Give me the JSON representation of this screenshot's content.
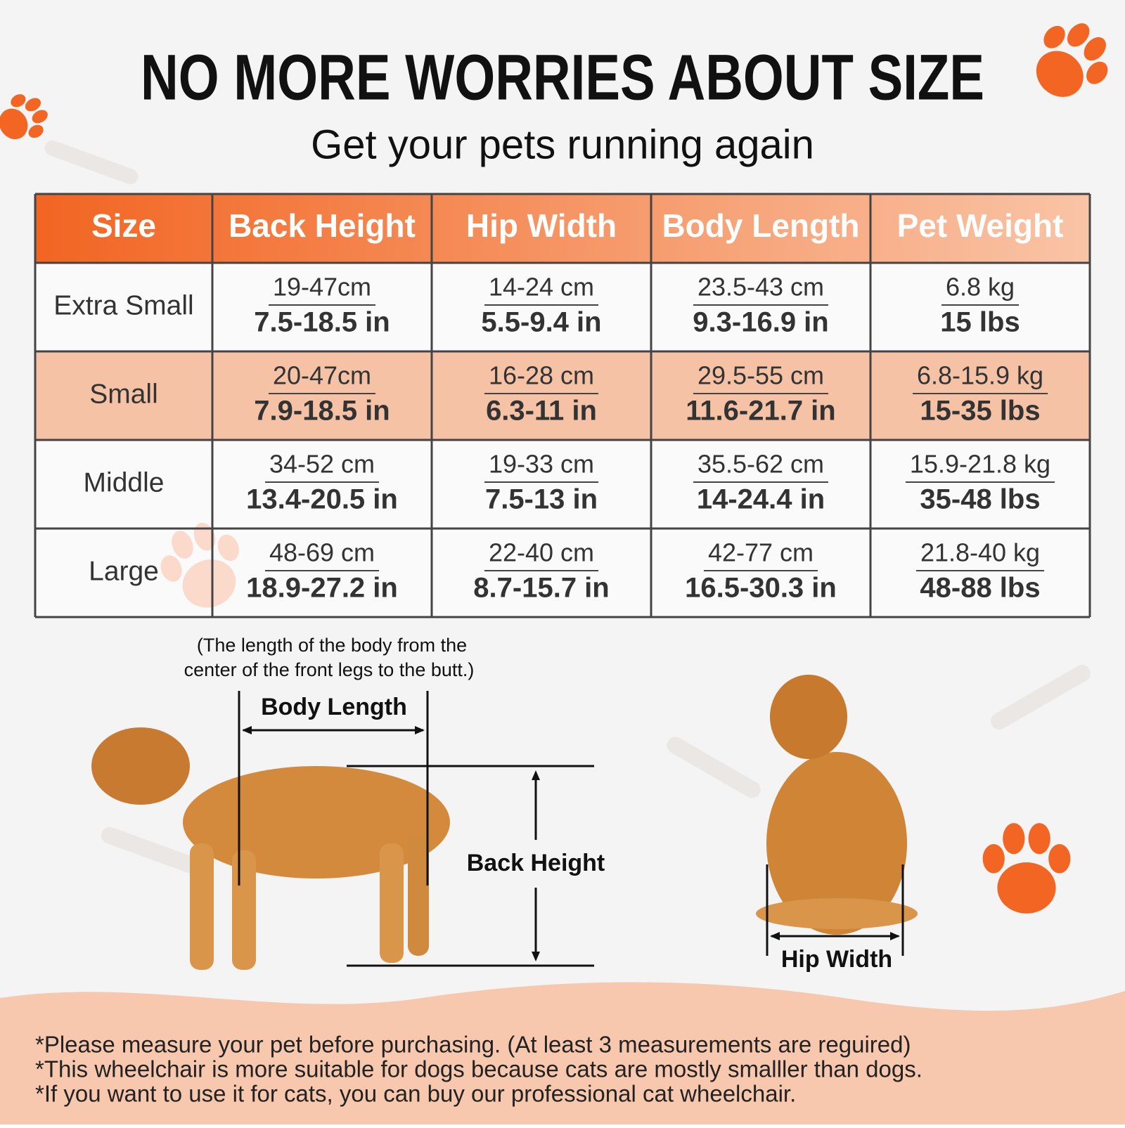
{
  "header": {
    "title": "NO MORE WORRIES ABOUT SIZE",
    "subtitle": "Get your pets running again"
  },
  "table": {
    "headers": [
      "Size",
      "Back Height",
      "Hip Width",
      "Body Length",
      "Pet Weight"
    ],
    "rows": [
      {
        "size": "Extra Small",
        "cells": [
          [
            "19-47cm",
            "7.5-18.5 in"
          ],
          [
            "14-24 cm",
            "5.5-9.4 in"
          ],
          [
            "23.5-43 cm",
            "9.3-16.9 in"
          ],
          [
            "6.8 kg",
            "15 lbs"
          ]
        ]
      },
      {
        "size": "Small",
        "cells": [
          [
            "20-47cm",
            "7.9-18.5 in"
          ],
          [
            "16-28 cm",
            "6.3-11 in"
          ],
          [
            "29.5-55 cm",
            "11.6-21.7 in"
          ],
          [
            "6.8-15.9 kg",
            "15-35 lbs"
          ]
        ]
      },
      {
        "size": "Middle",
        "cells": [
          [
            "34-52 cm",
            "13.4-20.5 in"
          ],
          [
            "19-33 cm",
            "7.5-13 in"
          ],
          [
            "35.5-62 cm",
            "14-24.4 in"
          ],
          [
            "15.9-21.8 kg",
            "35-48 lbs"
          ]
        ]
      },
      {
        "size": "Large",
        "cells": [
          [
            "48-69 cm",
            "18.9-27.2 in"
          ],
          [
            "22-40 cm",
            "8.7-15.7 in"
          ],
          [
            "42-77 cm",
            "16.5-30.3 in"
          ],
          [
            "21.8-40 kg",
            "48-88 lbs"
          ]
        ]
      }
    ]
  },
  "diagram": {
    "note_line1": "(The length of the body from the",
    "note_line2": "center of the front legs to the butt.)",
    "body_length": "Body Length",
    "back_height": "Back Height",
    "hip_width": "Hip Width"
  },
  "notes": [
    "*Please measure your pet before purchasing. (At least 3 measurements are reguired)",
    "*This wheelchair is more suitable for dogs because cats are mostly smalller than dogs.",
    "*If you want to use it for cats, you can buy our professional cat wheelchair."
  ]
}
